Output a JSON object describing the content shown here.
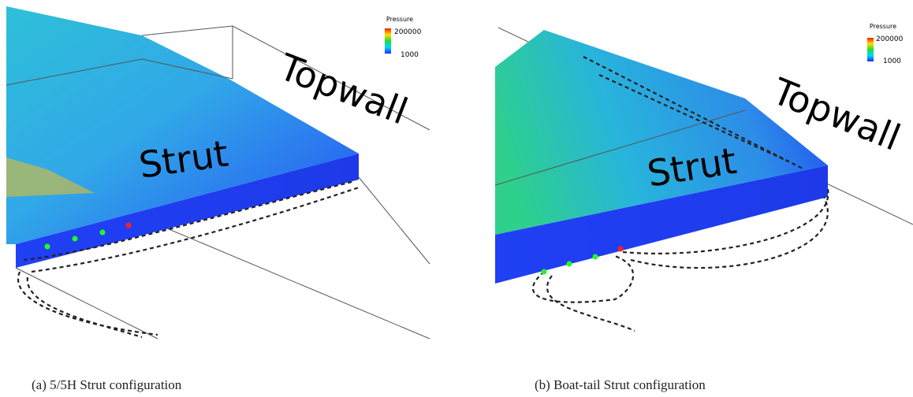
{
  "panels": [
    {
      "legend": {
        "title": "Pressure",
        "max": "200000",
        "min": "1000"
      },
      "labels": {
        "topwall": "Topwall",
        "strut": "Strut"
      },
      "caption": "(a) 5/5H Strut configuration"
    },
    {
      "legend": {
        "title": "Pressure",
        "max": "200000",
        "min": "1000"
      },
      "labels": {
        "topwall": "Topwall",
        "strut": "Strut"
      },
      "caption": "(b) Boat-tail Strut configuration"
    }
  ]
}
